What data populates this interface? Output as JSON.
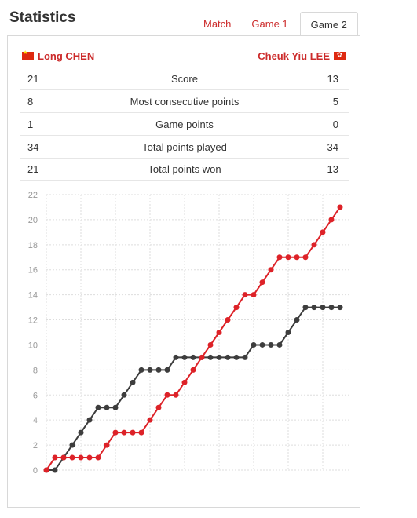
{
  "heading": "Statistics",
  "tabs": [
    {
      "label": "Match",
      "active": false
    },
    {
      "label": "Game 1",
      "active": false
    },
    {
      "label": "Game 2",
      "active": true
    }
  ],
  "players": {
    "left": {
      "name": "Long CHEN",
      "flag": "china-flag-icon"
    },
    "right": {
      "name": "Cheuk Yiu LEE",
      "flag": "hong-kong-flag-icon"
    }
  },
  "stats": [
    {
      "left": "21",
      "label": "Score",
      "right": "13"
    },
    {
      "left": "8",
      "label": "Most consecutive points",
      "right": "5"
    },
    {
      "left": "1",
      "label": "Game points",
      "right": "0"
    },
    {
      "left": "34",
      "label": "Total points played",
      "right": "34"
    },
    {
      "left": "21",
      "label": "Total points won",
      "right": "13"
    }
  ],
  "colors": {
    "accent": "#cc2b2b",
    "series_red": "#dd2228",
    "series_dark": "#3d3d3d",
    "grid": "#dddddd"
  },
  "chart_data": {
    "type": "line",
    "ylim": [
      0,
      22
    ],
    "yticks": [
      0,
      2,
      4,
      6,
      8,
      10,
      12,
      14,
      16,
      18,
      20,
      22
    ],
    "grid": true,
    "x": [
      0,
      1,
      2,
      3,
      4,
      5,
      6,
      7,
      8,
      9,
      10,
      11,
      12,
      13,
      14,
      15,
      16,
      17,
      18,
      19,
      20,
      21,
      22,
      23,
      24,
      25,
      26,
      27,
      28,
      29,
      30,
      31,
      32,
      33,
      34
    ],
    "series": [
      {
        "player": "left",
        "color": "#dd2228",
        "values": [
          0,
          1,
          1,
          1,
          1,
          1,
          1,
          2,
          3,
          3,
          3,
          3,
          4,
          5,
          6,
          6,
          7,
          8,
          9,
          10,
          11,
          12,
          13,
          14,
          14,
          15,
          16,
          17,
          17,
          17,
          17,
          18,
          19,
          20,
          21
        ]
      },
      {
        "player": "right",
        "color": "#3d3d3d",
        "values": [
          0,
          0,
          1,
          2,
          3,
          4,
          5,
          5,
          5,
          6,
          7,
          8,
          8,
          8,
          8,
          9,
          9,
          9,
          9,
          9,
          9,
          9,
          9,
          9,
          10,
          10,
          10,
          10,
          11,
          12,
          13,
          13,
          13,
          13,
          13
        ]
      }
    ]
  }
}
